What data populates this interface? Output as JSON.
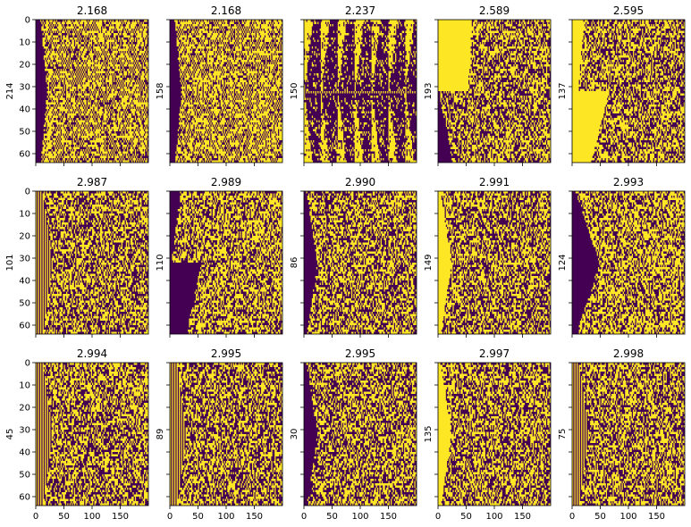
{
  "figure": {
    "description_colors": {
      "low": "#440154",
      "high": "#fde725"
    },
    "x_ticks": [
      "0",
      "50",
      "100",
      "150"
    ],
    "y_ticks": [
      "0",
      "10",
      "20",
      "30",
      "40",
      "50",
      "60"
    ]
  },
  "chart_data": [
    {
      "type": "heatmap",
      "title": "2.168",
      "ylabel": "214",
      "xlim": [
        0,
        200
      ],
      "ylim": [
        64,
        0
      ],
      "pattern": "dense_left_wedge"
    },
    {
      "type": "heatmap",
      "title": "2.168",
      "ylabel": "158",
      "xlim": [
        0,
        200
      ],
      "ylim": [
        64,
        0
      ],
      "pattern": "dense_left_wedge"
    },
    {
      "type": "heatmap",
      "title": "2.237",
      "ylabel": "150",
      "xlim": [
        0,
        200
      ],
      "ylim": [
        64,
        0
      ],
      "pattern": "dark_sawtooth"
    },
    {
      "type": "heatmap",
      "title": "2.589",
      "ylabel": "193",
      "xlim": [
        0,
        200
      ],
      "ylim": [
        64,
        0
      ],
      "pattern": "yellow_upper_wedge"
    },
    {
      "type": "heatmap",
      "title": "2.595",
      "ylabel": "137",
      "xlim": [
        0,
        200
      ],
      "ylim": [
        64,
        0
      ],
      "pattern": "yellow_lower_wedge"
    },
    {
      "type": "heatmap",
      "title": "2.987",
      "ylabel": "101",
      "xlim": [
        0,
        200
      ],
      "ylim": [
        64,
        0
      ],
      "pattern": "stripes_left_noise"
    },
    {
      "type": "heatmap",
      "title": "2.989",
      "ylabel": "110",
      "xlim": [
        0,
        200
      ],
      "ylim": [
        64,
        0
      ],
      "pattern": "dark_lower_wedge"
    },
    {
      "type": "heatmap",
      "title": "2.990",
      "ylabel": "86",
      "xlim": [
        0,
        200
      ],
      "ylim": [
        64,
        0
      ],
      "pattern": "dark_left_triangle"
    },
    {
      "type": "heatmap",
      "title": "2.991",
      "ylabel": "149",
      "xlim": [
        0,
        200
      ],
      "ylim": [
        64,
        0
      ],
      "pattern": "yellow_left_triangle"
    },
    {
      "type": "heatmap",
      "title": "2.993",
      "ylabel": "124",
      "xlim": [
        0,
        200
      ],
      "ylim": [
        64,
        0
      ],
      "pattern": "dark_big_triangle"
    },
    {
      "type": "heatmap",
      "title": "2.994",
      "ylabel": "45",
      "xlim": [
        0,
        200
      ],
      "ylim": [
        64,
        0
      ],
      "pattern": "stripes_left_noise"
    },
    {
      "type": "heatmap",
      "title": "2.995",
      "ylabel": "89",
      "xlim": [
        0,
        200
      ],
      "ylim": [
        64,
        0
      ],
      "pattern": "stripes_left_noise"
    },
    {
      "type": "heatmap",
      "title": "2.995",
      "ylabel": "30",
      "xlim": [
        0,
        200
      ],
      "ylim": [
        64,
        0
      ],
      "pattern": "dark_left_triangle"
    },
    {
      "type": "heatmap",
      "title": "2.997",
      "ylabel": "135",
      "xlim": [
        0,
        200
      ],
      "ylim": [
        64,
        0
      ],
      "pattern": "yellow_left_triangle"
    },
    {
      "type": "heatmap",
      "title": "2.998",
      "ylabel": "75",
      "xlim": [
        0,
        200
      ],
      "ylim": [
        64,
        0
      ],
      "pattern": "stripes_left_noise"
    }
  ]
}
